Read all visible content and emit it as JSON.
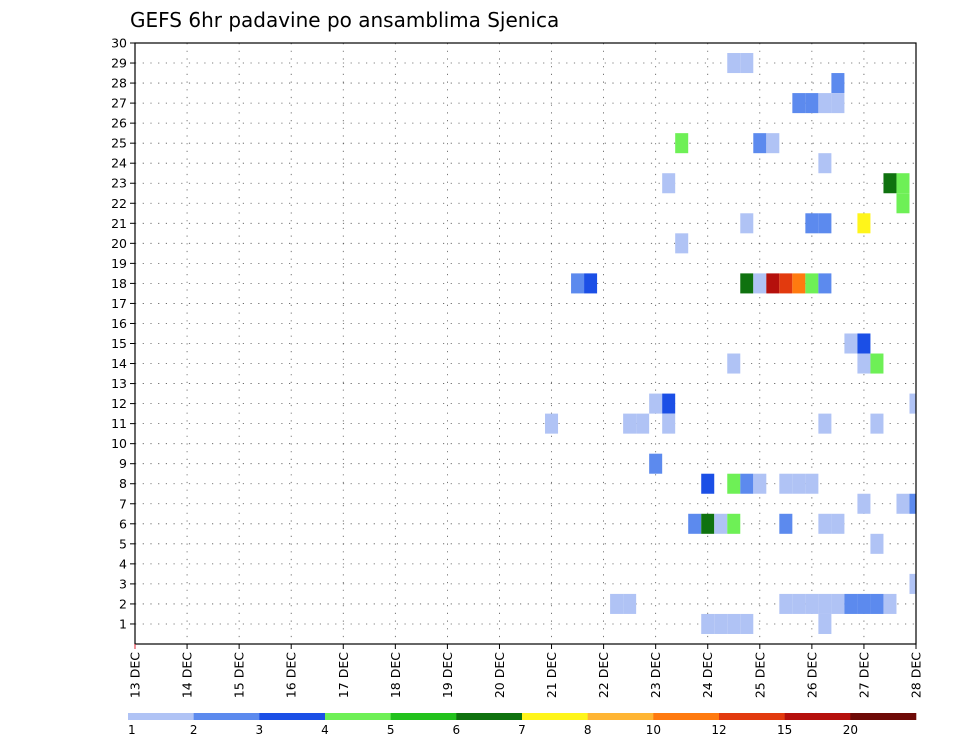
{
  "chart_data": {
    "type": "heatmap",
    "title": "GEFS 6hr padavine po ansamblima Sjenica",
    "y_axis": {
      "min": 0,
      "max": 30,
      "ticks": [
        1,
        2,
        3,
        4,
        5,
        6,
        7,
        8,
        9,
        10,
        11,
        12,
        13,
        14,
        15,
        16,
        17,
        18,
        19,
        20,
        21,
        22,
        23,
        24,
        25,
        26,
        27,
        28,
        29,
        30
      ]
    },
    "x_axis": {
      "unit": "6-hour steps from 13 DEC",
      "max_steps": 60,
      "tick_labels": [
        "13 DEC",
        "14 DEC",
        "15 DEC",
        "16 DEC",
        "17 DEC",
        "18 DEC",
        "19 DEC",
        "20 DEC",
        "21 DEC",
        "22 DEC",
        "23 DEC",
        "24 DEC",
        "25 DEC",
        "26 DEC",
        "27 DEC",
        "28 DEC"
      ]
    },
    "color_scale": {
      "colors": [
        "#b0c3f5",
        "#5c8aee",
        "#1b4fe6",
        "#6ef056",
        "#22c21c",
        "#0f720f",
        "#fff51a",
        "#ffb533",
        "#ff7a0f",
        "#e23a0e",
        "#b5100c",
        "#6e0a07"
      ],
      "labels": [
        "1",
        "2",
        "3",
        "4",
        "5",
        "6",
        "7",
        "8",
        "10",
        "12",
        "15",
        "20"
      ]
    },
    "cells_note": "member = ensemble member (row), step = 6-hour step index, level = colour class 1-12",
    "cells": [
      {
        "member": 29,
        "step": 46,
        "level": 1
      },
      {
        "member": 29,
        "step": 47,
        "level": 1
      },
      {
        "member": 28,
        "step": 54,
        "level": 2
      },
      {
        "member": 27,
        "step": 51,
        "level": 2
      },
      {
        "member": 27,
        "step": 52,
        "level": 2
      },
      {
        "member": 27,
        "step": 53,
        "level": 1
      },
      {
        "member": 27,
        "step": 54,
        "level": 1
      },
      {
        "member": 25,
        "step": 42,
        "level": 4
      },
      {
        "member": 25,
        "step": 48,
        "level": 2
      },
      {
        "member": 25,
        "step": 49,
        "level": 1
      },
      {
        "member": 24,
        "step": 53,
        "level": 1
      },
      {
        "member": 23,
        "step": 41,
        "level": 1
      },
      {
        "member": 23,
        "step": 58,
        "level": 6
      },
      {
        "member": 23,
        "step": 59,
        "level": 4
      },
      {
        "member": 22,
        "step": 59,
        "level": 4
      },
      {
        "member": 21,
        "step": 47,
        "level": 1
      },
      {
        "member": 21,
        "step": 52,
        "level": 2
      },
      {
        "member": 21,
        "step": 53,
        "level": 2
      },
      {
        "member": 21,
        "step": 56,
        "level": 7
      },
      {
        "member": 20,
        "step": 42,
        "level": 1
      },
      {
        "member": 18,
        "step": 34,
        "level": 2
      },
      {
        "member": 18,
        "step": 35,
        "level": 3
      },
      {
        "member": 18,
        "step": 47,
        "level": 6
      },
      {
        "member": 18,
        "step": 48,
        "level": 1
      },
      {
        "member": 18,
        "step": 49,
        "level": 11
      },
      {
        "member": 18,
        "step": 50,
        "level": 10
      },
      {
        "member": 18,
        "step": 51,
        "level": 9
      },
      {
        "member": 18,
        "step": 52,
        "level": 4
      },
      {
        "member": 18,
        "step": 53,
        "level": 2
      },
      {
        "member": 15,
        "step": 55,
        "level": 1
      },
      {
        "member": 15,
        "step": 56,
        "level": 3
      },
      {
        "member": 14,
        "step": 56,
        "level": 1
      },
      {
        "member": 14,
        "step": 57,
        "level": 4
      },
      {
        "member": 14,
        "step": 46,
        "level": 1
      },
      {
        "member": 12,
        "step": 40,
        "level": 1
      },
      {
        "member": 12,
        "step": 41,
        "level": 3
      },
      {
        "member": 12,
        "step": 60,
        "level": 1
      },
      {
        "member": 11,
        "step": 32,
        "level": 1
      },
      {
        "member": 11,
        "step": 38,
        "level": 1
      },
      {
        "member": 11,
        "step": 39,
        "level": 1
      },
      {
        "member": 11,
        "step": 41,
        "level": 1
      },
      {
        "member": 11,
        "step": 53,
        "level": 1
      },
      {
        "member": 11,
        "step": 57,
        "level": 1
      },
      {
        "member": 9,
        "step": 40,
        "level": 2
      },
      {
        "member": 8,
        "step": 44,
        "level": 3
      },
      {
        "member": 8,
        "step": 46,
        "level": 4
      },
      {
        "member": 8,
        "step": 47,
        "level": 2
      },
      {
        "member": 8,
        "step": 48,
        "level": 1
      },
      {
        "member": 8,
        "step": 50,
        "level": 1
      },
      {
        "member": 8,
        "step": 51,
        "level": 1
      },
      {
        "member": 8,
        "step": 52,
        "level": 1
      },
      {
        "member": 7,
        "step": 56,
        "level": 1
      },
      {
        "member": 7,
        "step": 59,
        "level": 1
      },
      {
        "member": 7,
        "step": 60,
        "level": 2
      },
      {
        "member": 6,
        "step": 43,
        "level": 2
      },
      {
        "member": 6,
        "step": 44,
        "level": 6
      },
      {
        "member": 6,
        "step": 45,
        "level": 1
      },
      {
        "member": 6,
        "step": 46,
        "level": 4
      },
      {
        "member": 6,
        "step": 50,
        "level": 2
      },
      {
        "member": 6,
        "step": 53,
        "level": 1
      },
      {
        "member": 6,
        "step": 54,
        "level": 1
      },
      {
        "member": 5,
        "step": 57,
        "level": 1
      },
      {
        "member": 3,
        "step": 60,
        "level": 1
      },
      {
        "member": 2,
        "step": 37,
        "level": 1
      },
      {
        "member": 2,
        "step": 38,
        "level": 1
      },
      {
        "member": 2,
        "step": 50,
        "level": 1
      },
      {
        "member": 2,
        "step": 51,
        "level": 1
      },
      {
        "member": 2,
        "step": 52,
        "level": 1
      },
      {
        "member": 2,
        "step": 53,
        "level": 1
      },
      {
        "member": 2,
        "step": 54,
        "level": 1
      },
      {
        "member": 2,
        "step": 55,
        "level": 2
      },
      {
        "member": 2,
        "step": 56,
        "level": 2
      },
      {
        "member": 2,
        "step": 57,
        "level": 2
      },
      {
        "member": 2,
        "step": 58,
        "level": 1
      },
      {
        "member": 1,
        "step": 44,
        "level": 1
      },
      {
        "member": 1,
        "step": 45,
        "level": 1
      },
      {
        "member": 1,
        "step": 46,
        "level": 1
      },
      {
        "member": 1,
        "step": 47,
        "level": 1
      },
      {
        "member": 1,
        "step": 53,
        "level": 1
      }
    ]
  }
}
